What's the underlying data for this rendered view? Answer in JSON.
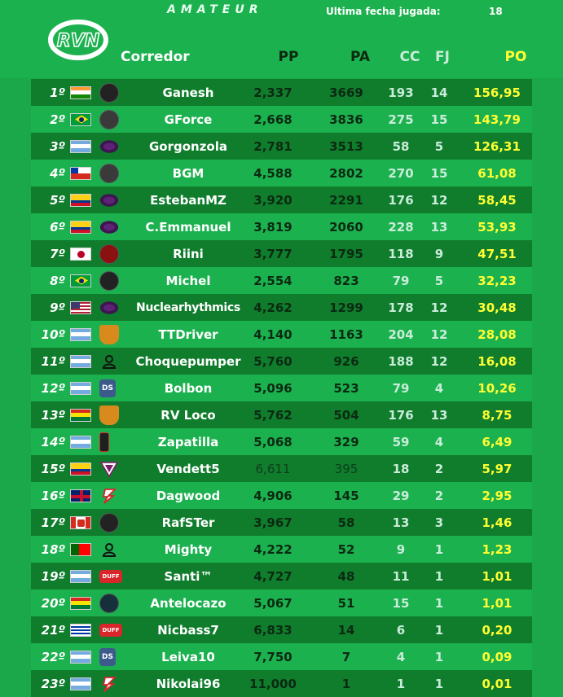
{
  "header": {
    "category": "AMATEUR",
    "last_date_label": "Ultima fecha jugada:",
    "last_date_value": "18",
    "logo_text": "RVN"
  },
  "columns": {
    "corredor": "Corredor",
    "pp": "PP",
    "pa": "PA",
    "cc": "CC",
    "fj": "FJ",
    "po": "PO"
  },
  "rows": [
    {
      "pos": "1º",
      "flag": "india",
      "team": "skull",
      "name": "Ganesh",
      "pp": "2,337",
      "pa": "3669",
      "cc": "193",
      "fj": "14",
      "po": "156,95"
    },
    {
      "pos": "2º",
      "flag": "brazil",
      "team": "mask",
      "name": "GForce",
      "pp": "2,668",
      "pa": "3836",
      "cc": "275",
      "fj": "15",
      "po": "143,79"
    },
    {
      "pos": "3º",
      "flag": "argentina",
      "team": "purple",
      "name": "Gorgonzola",
      "pp": "2,781",
      "pa": "3513",
      "cc": "58",
      "fj": "5",
      "po": "126,31"
    },
    {
      "pos": "4º",
      "flag": "chile",
      "team": "mask",
      "name": "BGM",
      "pp": "4,588",
      "pa": "2802",
      "cc": "270",
      "fj": "15",
      "po": "61,08"
    },
    {
      "pos": "5º",
      "flag": "colombia",
      "team": "purple",
      "name": "EstebanMZ",
      "pp": "3,920",
      "pa": "2291",
      "cc": "176",
      "fj": "12",
      "po": "58,45"
    },
    {
      "pos": "6º",
      "flag": "colombia",
      "team": "purple",
      "name": "C.Emmanuel",
      "pp": "3,819",
      "pa": "2060",
      "cc": "228",
      "fj": "13",
      "po": "53,93"
    },
    {
      "pos": "7º",
      "flag": "japan",
      "team": "rebels",
      "name": "Riini",
      "pp": "3,777",
      "pa": "1795",
      "cc": "118",
      "fj": "9",
      "po": "47,51"
    },
    {
      "pos": "8º",
      "flag": "brazil",
      "team": "skull",
      "name": "Michel",
      "pp": "2,554",
      "pa": "823",
      "cc": "79",
      "fj": "5",
      "po": "32,23"
    },
    {
      "pos": "9º",
      "flag": "usa",
      "team": "purple",
      "name": "Nuclearhythmics",
      "pp": "4,262",
      "pa": "1299",
      "cc": "178",
      "fj": "12",
      "po": "30,48"
    },
    {
      "pos": "10º",
      "flag": "argentina",
      "team": "shield",
      "name": "TTDriver",
      "pp": "4,140",
      "pa": "1163",
      "cc": "204",
      "fj": "12",
      "po": "28,08"
    },
    {
      "pos": "11º",
      "flag": "argentina",
      "team": "person",
      "name": "Choquepumper",
      "pp": "5,760",
      "pa": "926",
      "cc": "188",
      "fj": "12",
      "po": "16,08"
    },
    {
      "pos": "12º",
      "flag": "argentina",
      "team": "ds",
      "name": "Bolbon",
      "pp": "5,096",
      "pa": "523",
      "cc": "79",
      "fj": "4",
      "po": "10,26"
    },
    {
      "pos": "13º",
      "flag": "bolivia",
      "team": "shield",
      "name": "RV Loco",
      "pp": "5,762",
      "pa": "504",
      "cc": "176",
      "fj": "13",
      "po": "8,75"
    },
    {
      "pos": "14º",
      "flag": "argentina",
      "team": "bale",
      "name": "Zapatilla",
      "pp": "5,068",
      "pa": "329",
      "cc": "59",
      "fj": "4",
      "po": "6,49"
    },
    {
      "pos": "15º",
      "flag": "colombia",
      "team": "tri",
      "name": "Vendett5",
      "pp": "6,611",
      "pa": "395",
      "cc": "18",
      "fj": "2",
      "po": "5,97"
    },
    {
      "pos": "16º",
      "flag": "uk",
      "team": "swirl",
      "name": "Dagwood",
      "pp": "4,906",
      "pa": "145",
      "cc": "29",
      "fj": "2",
      "po": "2,95"
    },
    {
      "pos": "17º",
      "flag": "canada",
      "team": "skull",
      "name": "RafSTer",
      "pp": "3,967",
      "pa": "58",
      "cc": "13",
      "fj": "3",
      "po": "1,46"
    },
    {
      "pos": "18º",
      "flag": "portugal",
      "team": "person",
      "name": "Mighty",
      "pp": "4,222",
      "pa": "52",
      "cc": "9",
      "fj": "1",
      "po": "1,23"
    },
    {
      "pos": "19º",
      "flag": "argentina",
      "team": "duff",
      "name": "Santi™",
      "pp": "4,727",
      "pa": "48",
      "cc": "11",
      "fj": "1",
      "po": "1,01"
    },
    {
      "pos": "20º",
      "flag": "bolivia",
      "team": "octo",
      "name": "Antelocazo",
      "pp": "5,067",
      "pa": "51",
      "cc": "15",
      "fj": "1",
      "po": "1,01"
    },
    {
      "pos": "21º",
      "flag": "uruguay",
      "team": "duff",
      "name": "Nicbass7",
      "pp": "6,833",
      "pa": "14",
      "cc": "6",
      "fj": "1",
      "po": "0,20"
    },
    {
      "pos": "22º",
      "flag": "argentina",
      "team": "ds",
      "name": "Leiva10",
      "pp": "7,750",
      "pa": "7",
      "cc": "4",
      "fj": "1",
      "po": "0,09"
    },
    {
      "pos": "23º",
      "flag": "argentina",
      "team": "swirl",
      "name": "Nikolai96",
      "pp": "11,000",
      "pa": "1",
      "cc": "1",
      "fj": "1",
      "po": "0,01"
    }
  ],
  "flag_colors": {
    "india": [
      "#ff9933",
      "#ffffff",
      "#138808"
    ],
    "brazil": [
      "#009c3b",
      "#ffdf00",
      "#009c3b"
    ],
    "argentina": [
      "#74acdf",
      "#ffffff",
      "#74acdf"
    ],
    "chile": [
      "#ffffff",
      "#ffffff",
      "#d52b1e"
    ],
    "colombia": [
      "#fcd116",
      "#003893",
      "#ce1126"
    ],
    "japan": [
      "#ffffff",
      "#ffffff",
      "#ffffff"
    ],
    "usa": [
      "#b22234",
      "#ffffff",
      "#b22234"
    ],
    "bolivia": [
      "#d52b1e",
      "#f9e300",
      "#007934"
    ],
    "uk": [
      "#012169",
      "#c8102e",
      "#012169"
    ],
    "canada": [
      "#ffffff",
      "#ffffff",
      "#ffffff"
    ],
    "portugal": [
      "#006600",
      "#ff0000",
      "#ff0000"
    ],
    "uruguay": [
      "#ffffff",
      "#0038a8",
      "#ffffff"
    ]
  },
  "team_colors": {
    "skull": "#222222",
    "mask": "#3a3a3a",
    "purple": "#4b1a5c",
    "rebels": "#8b1010",
    "shield": "#d98a1c",
    "person": "#ffffff",
    "ds": "#3c5a8c",
    "bale": "#1f1f1f",
    "tri": "#ffffff",
    "swirl": "#ffffff",
    "duff": "#d8262b",
    "octo": "#15303b"
  }
}
